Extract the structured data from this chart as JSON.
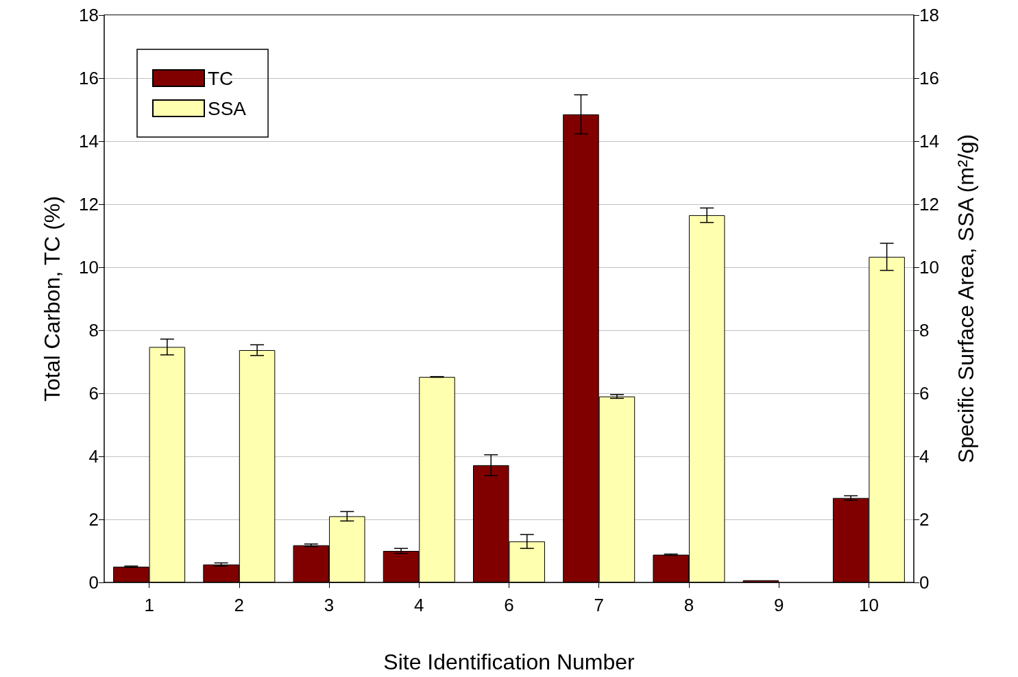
{
  "chart_data": {
    "type": "bar",
    "xlabel": "Site Identification Number",
    "ylabel": "Total Carbon, TC (%)",
    "y2label": "Specific Surface Area, SSA (m²/g)",
    "categories": [
      "1",
      "2",
      "3",
      "4",
      "6",
      "7",
      "8",
      "9",
      "10"
    ],
    "series": [
      {
        "name": "TC",
        "color": "#800000",
        "values": [
          0.5,
          0.57,
          1.18,
          1.0,
          3.72,
          14.85,
          0.88,
          0.07,
          2.68
        ],
        "errors": [
          0.02,
          0.05,
          0.04,
          0.08,
          0.33,
          0.62,
          0.02,
          null,
          0.07
        ]
      },
      {
        "name": "SSA",
        "color": "#ffffb0",
        "axis": "y2",
        "values": [
          7.47,
          7.37,
          2.1,
          6.52,
          1.3,
          5.9,
          11.65,
          null,
          10.33
        ],
        "errors": [
          0.25,
          0.17,
          0.15,
          0.01,
          0.22,
          0.06,
          0.23,
          null,
          0.43
        ]
      }
    ],
    "ylim": [
      0,
      18
    ],
    "yticks": [
      0,
      2,
      4,
      6,
      8,
      10,
      12,
      14,
      16,
      18
    ],
    "y2lim": [
      0,
      18
    ],
    "y2ticks": [
      0,
      2,
      4,
      6,
      8,
      10,
      12,
      14,
      16,
      18
    ],
    "grid": "y",
    "legend": "top left"
  }
}
